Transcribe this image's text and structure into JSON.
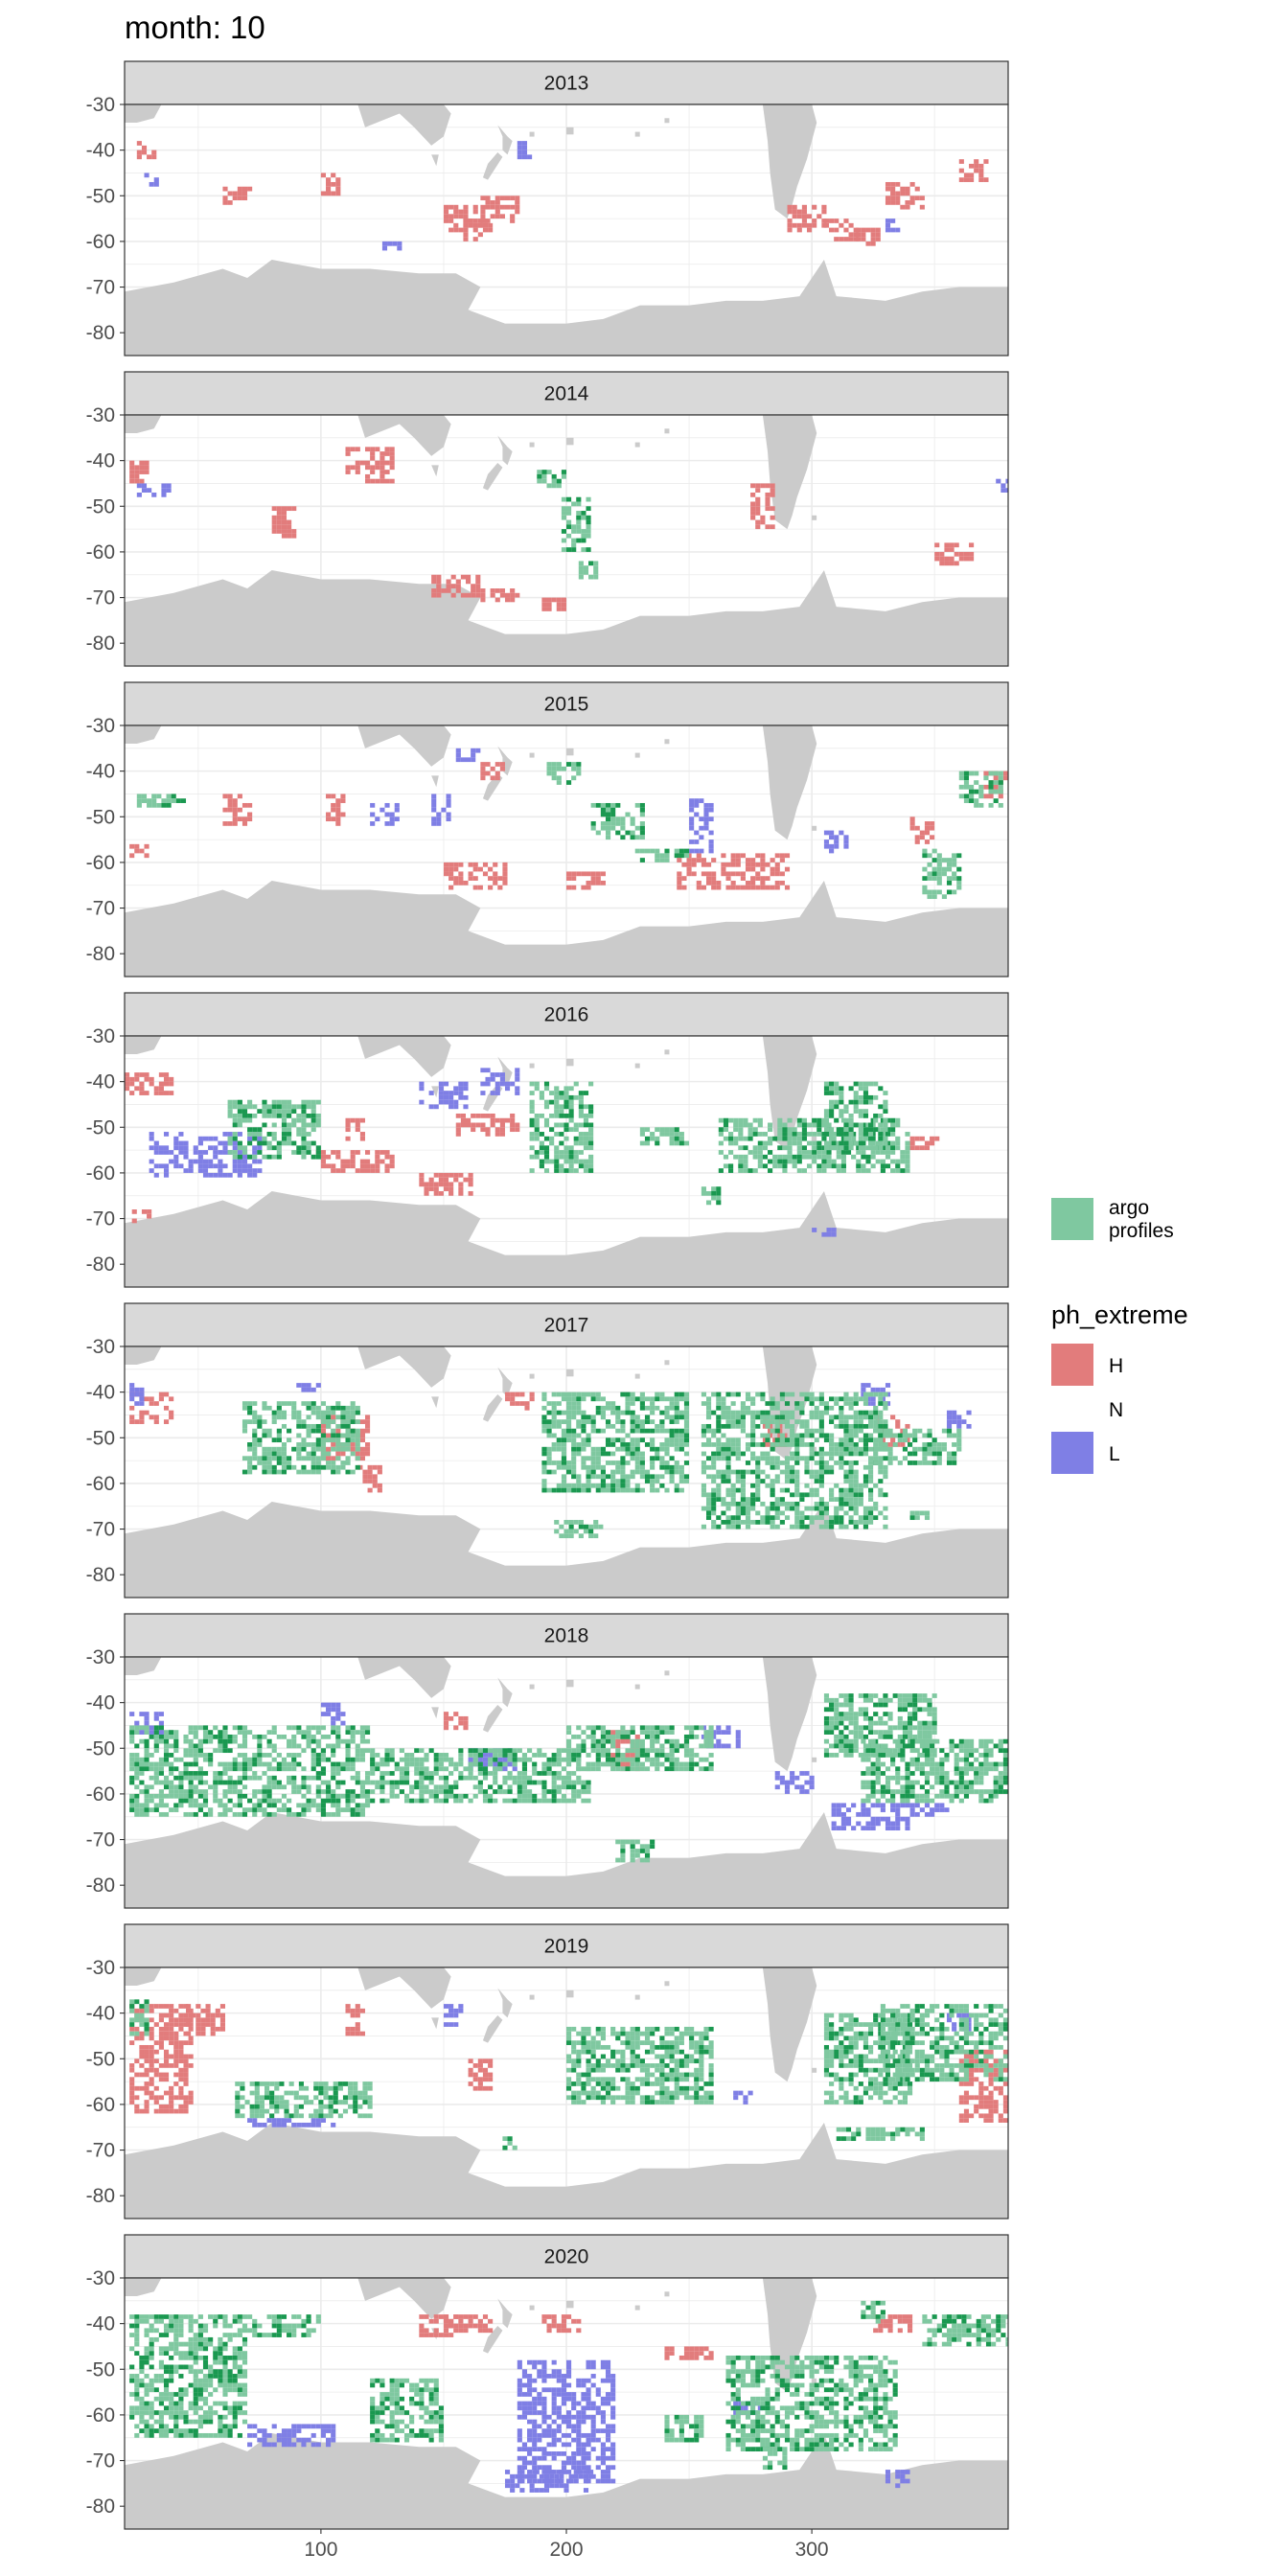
{
  "title": "month: 10",
  "chart_data": {
    "type": "heatmap",
    "title": "month: 10",
    "xlabel": "",
    "ylabel": "",
    "x_ticks": [
      100,
      200,
      300
    ],
    "y_ticks": [
      -30,
      -40,
      -50,
      -60,
      -70,
      -80
    ],
    "xlim": [
      20,
      380
    ],
    "ylim": [
      -85,
      -30
    ],
    "grid": true,
    "legend_position": "right",
    "colors": {
      "H": "#e27c7c",
      "N": "#ffffff",
      "L": "#7f7fe5",
      "argo": "#7fc8a0",
      "argo_dark": "#1a9850",
      "land": "#cbcbcb"
    },
    "legends": [
      {
        "key": "argo",
        "label": "argo profiles",
        "label_lines": [
          "argo",
          "profiles"
        ]
      },
      {
        "title": "ph_extreme",
        "items": [
          {
            "key": "H",
            "label": "H"
          },
          {
            "key": "N",
            "label": "N"
          },
          {
            "key": "L",
            "label": "L"
          }
        ]
      }
    ],
    "panels": [
      {
        "year": "2013",
        "H": [
          [
            150,
            165,
            -52,
            -58
          ],
          [
            158,
            170,
            -55,
            -60
          ],
          [
            165,
            180,
            -50,
            -56
          ],
          [
            60,
            72,
            -48,
            -52
          ],
          [
            100,
            108,
            -45,
            -50
          ],
          [
            290,
            305,
            -52,
            -58
          ],
          [
            305,
            318,
            -55,
            -60
          ],
          [
            330,
            345,
            -47,
            -53
          ],
          [
            360,
            372,
            -42,
            -47
          ],
          [
            25,
            32,
            -38,
            -42
          ],
          [
            318,
            328,
            -57,
            -61
          ]
        ],
        "L": [
          [
            28,
            34,
            -45,
            -48
          ],
          [
            180,
            186,
            -38,
            -42
          ],
          [
            125,
            132,
            -60,
            -62
          ],
          [
            330,
            335,
            -55,
            -58
          ]
        ],
        "A": []
      },
      {
        "year": "2014",
        "H": [
          [
            110,
            130,
            -37,
            -45
          ],
          [
            145,
            165,
            -65,
            -70
          ],
          [
            165,
            180,
            -68,
            -71
          ],
          [
            80,
            90,
            -50,
            -57
          ],
          [
            275,
            285,
            -45,
            -55
          ],
          [
            350,
            365,
            -58,
            -63
          ],
          [
            22,
            30,
            -40,
            -45
          ],
          [
            190,
            200,
            -70,
            -73
          ]
        ],
        "L": [
          [
            25,
            38,
            -45,
            -48
          ],
          [
            375,
            380,
            -44,
            -47
          ]
        ],
        "A": [
          [
            198,
            210,
            -48,
            -60
          ],
          [
            188,
            200,
            -42,
            -46
          ],
          [
            205,
            212,
            -62,
            -66
          ]
        ]
      },
      {
        "year": "2015",
        "H": [
          [
            22,
            30,
            -56,
            -59
          ],
          [
            150,
            175,
            -60,
            -66
          ],
          [
            200,
            215,
            -62,
            -66
          ],
          [
            245,
            290,
            -58,
            -66
          ],
          [
            60,
            72,
            -45,
            -52
          ],
          [
            102,
            110,
            -45,
            -52
          ],
          [
            370,
            380,
            -40,
            -46
          ],
          [
            340,
            350,
            -50,
            -56
          ],
          [
            165,
            175,
            -38,
            -42
          ]
        ],
        "L": [
          [
            250,
            260,
            -46,
            -58
          ],
          [
            305,
            315,
            -53,
            -58
          ],
          [
            120,
            132,
            -47,
            -52
          ],
          [
            145,
            152,
            -45,
            -52
          ],
          [
            155,
            165,
            -35,
            -38
          ]
        ],
        "A": [
          [
            210,
            232,
            -47,
            -55
          ],
          [
            228,
            250,
            -57,
            -60
          ],
          [
            345,
            360,
            -57,
            -68
          ],
          [
            360,
            378,
            -40,
            -48
          ],
          [
            192,
            206,
            -38,
            -43
          ],
          [
            25,
            45,
            -45,
            -48
          ]
        ]
      },
      {
        "year": "2016",
        "H": [
          [
            98,
            130,
            -55,
            -60
          ],
          [
            155,
            180,
            -47,
            -52
          ],
          [
            140,
            162,
            -60,
            -65
          ],
          [
            20,
            40,
            -38,
            -43
          ],
          [
            110,
            118,
            -48,
            -53
          ],
          [
            340,
            352,
            -52,
            -55
          ],
          [
            23,
            30,
            -68,
            -71
          ]
        ],
        "L": [
          [
            30,
            75,
            -51,
            -61
          ],
          [
            140,
            160,
            -40,
            -46
          ],
          [
            165,
            180,
            -37,
            -43
          ],
          [
            300,
            310,
            -72,
            -74
          ]
        ],
        "A": [
          [
            62,
            100,
            -44,
            -57
          ],
          [
            185,
            210,
            -40,
            -60
          ],
          [
            262,
            340,
            -48,
            -60
          ],
          [
            305,
            330,
            -40,
            -55
          ],
          [
            230,
            250,
            -50,
            -54
          ],
          [
            255,
            262,
            -63,
            -67
          ]
        ]
      },
      {
        "year": "2017",
        "H": [
          [
            100,
            120,
            -45,
            -55
          ],
          [
            115,
            125,
            -56,
            -62
          ],
          [
            22,
            40,
            -40,
            -47
          ],
          [
            175,
            186,
            -40,
            -44
          ],
          [
            326,
            340,
            -45,
            -52
          ],
          [
            280,
            290,
            -45,
            -52
          ]
        ],
        "L": [
          [
            355,
            365,
            -44,
            -48
          ],
          [
            320,
            332,
            -38,
            -43
          ],
          [
            22,
            28,
            -38,
            -43
          ],
          [
            90,
            100,
            -38,
            -40
          ]
        ],
        "A": [
          [
            68,
            115,
            -42,
            -58
          ],
          [
            190,
            250,
            -40,
            -62
          ],
          [
            255,
            330,
            -40,
            -70
          ],
          [
            325,
            360,
            -48,
            -56
          ],
          [
            195,
            215,
            -68,
            -72
          ],
          [
            340,
            350,
            -66,
            -68
          ]
        ]
      },
      {
        "year": "2018",
        "H": [
          [
            218,
            230,
            -46,
            -55
          ],
          [
            150,
            160,
            -42,
            -46
          ]
        ],
        "L": [
          [
            22,
            35,
            -42,
            -47
          ],
          [
            285,
            300,
            -55,
            -60
          ],
          [
            308,
            340,
            -62,
            -68
          ],
          [
            340,
            355,
            -62,
            -65
          ],
          [
            255,
            270,
            -45,
            -50
          ],
          [
            160,
            180,
            -50,
            -55
          ],
          [
            100,
            110,
            -40,
            -45
          ]
        ],
        "A": [
          [
            22,
            120,
            -45,
            -65
          ],
          [
            120,
            210,
            -50,
            -62
          ],
          [
            200,
            260,
            -45,
            -55
          ],
          [
            305,
            350,
            -38,
            -52
          ],
          [
            320,
            380,
            -48,
            -62
          ],
          [
            220,
            235,
            -70,
            -75
          ]
        ]
      },
      {
        "year": "2019",
        "H": [
          [
            22,
            48,
            -38,
            -62
          ],
          [
            45,
            60,
            -38,
            -45
          ],
          [
            110,
            118,
            -38,
            -45
          ],
          [
            160,
            170,
            -50,
            -57
          ],
          [
            360,
            380,
            -48,
            -64
          ]
        ],
        "L": [
          [
            70,
            105,
            -63,
            -65
          ],
          [
            150,
            158,
            -38,
            -43
          ],
          [
            268,
            275,
            -57,
            -60
          ],
          [
            355,
            365,
            -40,
            -44
          ]
        ],
        "A": [
          [
            65,
            120,
            -55,
            -63
          ],
          [
            22,
            30,
            -37,
            -45
          ],
          [
            200,
            260,
            -43,
            -60
          ],
          [
            305,
            340,
            -40,
            -60
          ],
          [
            328,
            380,
            -38,
            -55
          ],
          [
            310,
            345,
            -65,
            -68
          ],
          [
            174,
            180,
            -67,
            -70
          ]
        ]
      },
      {
        "year": "2020",
        "H": [
          [
            140,
            155,
            -38,
            -43
          ],
          [
            150,
            170,
            -38,
            -42
          ],
          [
            240,
            260,
            -45,
            -48
          ],
          [
            190,
            205,
            -38,
            -42
          ],
          [
            325,
            340,
            -38,
            -42
          ]
        ],
        "L": [
          [
            180,
            220,
            -48,
            -75
          ],
          [
            175,
            210,
            -72,
            -77
          ],
          [
            70,
            105,
            -62,
            -67
          ],
          [
            268,
            280,
            -57,
            -60
          ],
          [
            330,
            340,
            -72,
            -76
          ]
        ],
        "A": [
          [
            22,
            70,
            -38,
            -65
          ],
          [
            70,
            100,
            -38,
            -43
          ],
          [
            120,
            150,
            -52,
            -66
          ],
          [
            265,
            335,
            -47,
            -68
          ],
          [
            345,
            380,
            -38,
            -45
          ],
          [
            240,
            255,
            -60,
            -66
          ],
          [
            280,
            290,
            -67,
            -72
          ],
          [
            320,
            330,
            -35,
            -40
          ]
        ]
      }
    ]
  }
}
